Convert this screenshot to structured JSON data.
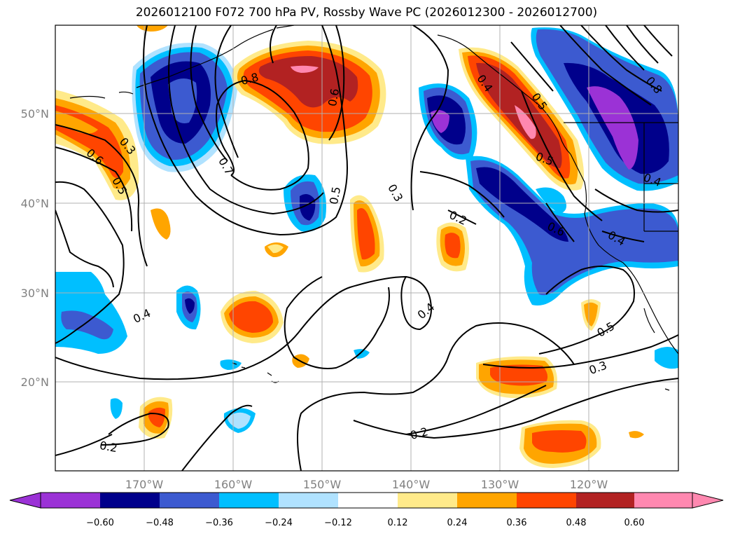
{
  "title": "2026012100 F072 700 hPa PV, Rossby Wave PC (2026012300 - 2026012700)",
  "map": {
    "lon_range": [
      -180,
      -110
    ],
    "lat_range": [
      10,
      60
    ],
    "lon_ticks": [
      "170°W",
      "160°W",
      "150°W",
      "140°W",
      "130°W",
      "120°W"
    ],
    "lat_ticks": [
      "50°N",
      "40°N",
      "30°N",
      "20°N"
    ],
    "grid": true
  },
  "colorbar": {
    "extend": "both",
    "colors": [
      "#9b32d6",
      "#00008b",
      "#3c5ad0",
      "#00bfff",
      "#b0e2ff",
      "#ffffff",
      "#ffea8a",
      "#ffa500",
      "#ff4500",
      "#b22222",
      "#ff88b0"
    ],
    "tick_labels": [
      "−0.60",
      "−0.48",
      "−0.36",
      "−0.24",
      "−0.12",
      "0.12",
      "0.24",
      "0.36",
      "0.48",
      "0.60"
    ]
  },
  "contour_labels": [
    "0.8",
    "0.6",
    "0.7",
    "0.6",
    "0.3",
    "0.5",
    "0.5",
    "0.3",
    "0.2",
    "0.4",
    "0.4",
    "0.2",
    "0.2",
    "0.3",
    "0.5",
    "0.5",
    "0.6",
    "0.4",
    "0.4",
    "0.8",
    "0.5",
    "0.4"
  ]
}
